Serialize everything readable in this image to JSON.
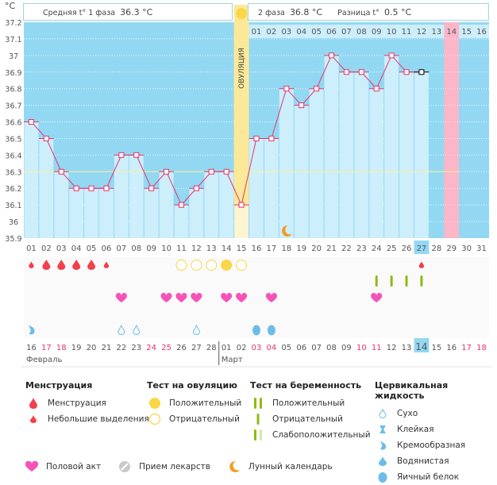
{
  "header": {
    "unit_label": "°C",
    "phase1_label": "Средняя t° 1 фаза",
    "phase1_value": "36.3 °C",
    "phase2_label": "2 фаза",
    "phase2_value": "36.8 °C",
    "diff_label": "Разница t°",
    "diff_value": "0.5 °C",
    "ovulation_label": "ОВУЛЯЦИЯ"
  },
  "colors": {
    "plot_bg": "#93d8f2",
    "bar_fill": "#cdeefb",
    "line": "#e8336a",
    "ovulation": "#fbe999",
    "highlight_day": "#fbb6c8",
    "coverline": "#fff08a"
  },
  "chart_data": {
    "type": "line",
    "title": "",
    "xlabel": "",
    "ylabel": "°C",
    "ylim": [
      35.9,
      37.2
    ],
    "yticks": [
      "37.2",
      "37.1",
      "37",
      "36.9",
      "36.8",
      "36.7",
      "36.6",
      "36.5",
      "36.4",
      "36.3",
      "36.2",
      "36.1",
      "36",
      "35.9"
    ],
    "cycle_days": [
      "01",
      "02",
      "03",
      "04",
      "05",
      "06",
      "07",
      "08",
      "09",
      "10",
      "11",
      "12",
      "13",
      "14",
      "15",
      "16",
      "17",
      "18",
      "19",
      "20",
      "21",
      "22",
      "23",
      "24",
      "25",
      "26",
      "27",
      "28",
      "29",
      "30",
      "31"
    ],
    "temperatures": [
      36.6,
      36.5,
      36.3,
      36.2,
      36.2,
      36.2,
      36.4,
      36.4,
      36.2,
      36.3,
      36.1,
      36.2,
      36.3,
      36.3,
      36.1,
      36.5,
      36.5,
      36.8,
      36.7,
      36.8,
      37.0,
      36.9,
      36.9,
      36.8,
      37.0,
      36.9,
      36.9
    ],
    "coverline": 36.3,
    "ovulation_day": 15,
    "current_day": 27,
    "highlight_day": 29,
    "phase2_day_labels": [
      "01",
      "02",
      "03",
      "04",
      "05",
      "06",
      "07",
      "08",
      "09",
      "10",
      "11",
      "12",
      "13",
      "14",
      "15",
      "16"
    ],
    "phase2_highlight_label": "14",
    "moon_day": 18
  },
  "markers": {
    "menstruation": [
      {
        "day": 1,
        "size": "small"
      },
      {
        "day": 2,
        "size": "big"
      },
      {
        "day": 3,
        "size": "big"
      },
      {
        "day": 4,
        "size": "big"
      },
      {
        "day": 5,
        "size": "big"
      },
      {
        "day": 6,
        "size": "small"
      },
      {
        "day": 27,
        "size": "small"
      }
    ],
    "ovulation_test": [
      {
        "day": 11,
        "result": "negative"
      },
      {
        "day": 12,
        "result": "negative"
      },
      {
        "day": 13,
        "result": "negative"
      },
      {
        "day": 14,
        "result": "positive"
      },
      {
        "day": 15,
        "result": "negative"
      }
    ],
    "pregnancy_test": [
      {
        "day": 24,
        "result": "negative"
      },
      {
        "day": 25,
        "result": "negative"
      },
      {
        "day": 26,
        "result": "negative"
      },
      {
        "day": 27,
        "result": "negative"
      }
    ],
    "intercourse": [
      7,
      10,
      11,
      12,
      14,
      15,
      17,
      24
    ],
    "cervical_fluid": [
      {
        "day": 1,
        "type": "creamy"
      },
      {
        "day": 7,
        "type": "dry"
      },
      {
        "day": 8,
        "type": "dry"
      },
      {
        "day": 12,
        "type": "dry"
      },
      {
        "day": 16,
        "type": "eggwhite"
      },
      {
        "day": 17,
        "type": "eggwhite"
      }
    ]
  },
  "calendar": {
    "dates": [
      "16",
      "17",
      "18",
      "19",
      "20",
      "21",
      "22",
      "23",
      "24",
      "25",
      "26",
      "27",
      "28",
      "01",
      "02",
      "03",
      "04",
      "05",
      "06",
      "07",
      "08",
      "09",
      "10",
      "11",
      "12",
      "13",
      "14",
      "15",
      "16",
      "17",
      "18"
    ],
    "weekend_flags": [
      0,
      1,
      1,
      0,
      0,
      0,
      0,
      0,
      1,
      1,
      0,
      0,
      0,
      0,
      0,
      1,
      1,
      0,
      0,
      0,
      0,
      0,
      1,
      1,
      0,
      0,
      0,
      0,
      0,
      1,
      1
    ],
    "today_index": 26,
    "month1": "Февраль",
    "month2": "Март"
  },
  "legend": {
    "menstruation": {
      "title": "Менструация",
      "items": [
        "Менструация",
        "Небольшие выделения"
      ]
    },
    "ovulation_test": {
      "title": "Тест на овуляцию",
      "items": [
        "Положительный",
        "Отрицательный"
      ]
    },
    "pregnancy_test": {
      "title": "Тест на беременность",
      "items": [
        "Положительный",
        "Отрицательный",
        "Слабоположительный"
      ]
    },
    "cervical": {
      "title": "Цервикальная жидкость",
      "items": [
        "Сухо",
        "Клейкая",
        "Кремообразная",
        "Водянистая",
        "Яичный белок"
      ]
    },
    "bottom": [
      "Половой акт",
      "Прием лекарств",
      "Лунный календарь"
    ]
  }
}
